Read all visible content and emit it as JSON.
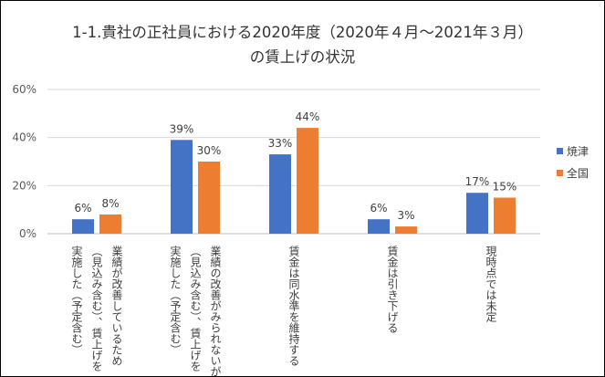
{
  "chart_data": {
    "type": "bar",
    "title_line1": "1-1.貴社の正社員における2020年度（2020年４月～2021年３月）",
    "title_line2": "の賃上げの状況",
    "categories": [
      {
        "line1": "業績が改善しているため",
        "line2": "（見込み含む）、賃上げを",
        "line3": "実施した（予定含む）"
      },
      {
        "line1": "業績の改善がみられないが",
        "line2": "（見込み含む）、賃上げを",
        "line3": "実施した（予定含む）"
      },
      {
        "line1": "賃金は同水準を維持する",
        "line2": "",
        "line3": ""
      },
      {
        "line1": "賃金は引き下げる",
        "line2": "",
        "line3": ""
      },
      {
        "line1": "現時点では未定",
        "line2": "",
        "line3": ""
      }
    ],
    "series": [
      {
        "name": "焼津",
        "values": [
          6,
          39,
          33,
          6,
          17
        ],
        "labels": [
          "6%",
          "39%",
          "33%",
          "6%",
          "17%"
        ],
        "color": "#4472C4"
      },
      {
        "name": "全国",
        "values": [
          8,
          30,
          44,
          3,
          15
        ],
        "labels": [
          "8%",
          "30%",
          "44%",
          "3%",
          "15%"
        ],
        "color": "#ED7D31"
      }
    ],
    "ylim": [
      0,
      60
    ],
    "yticks": [
      0,
      20,
      40,
      60
    ],
    "ytick_labels": [
      "0%",
      "20%",
      "40%",
      "60%"
    ],
    "grid": true,
    "legend_position": "right"
  }
}
